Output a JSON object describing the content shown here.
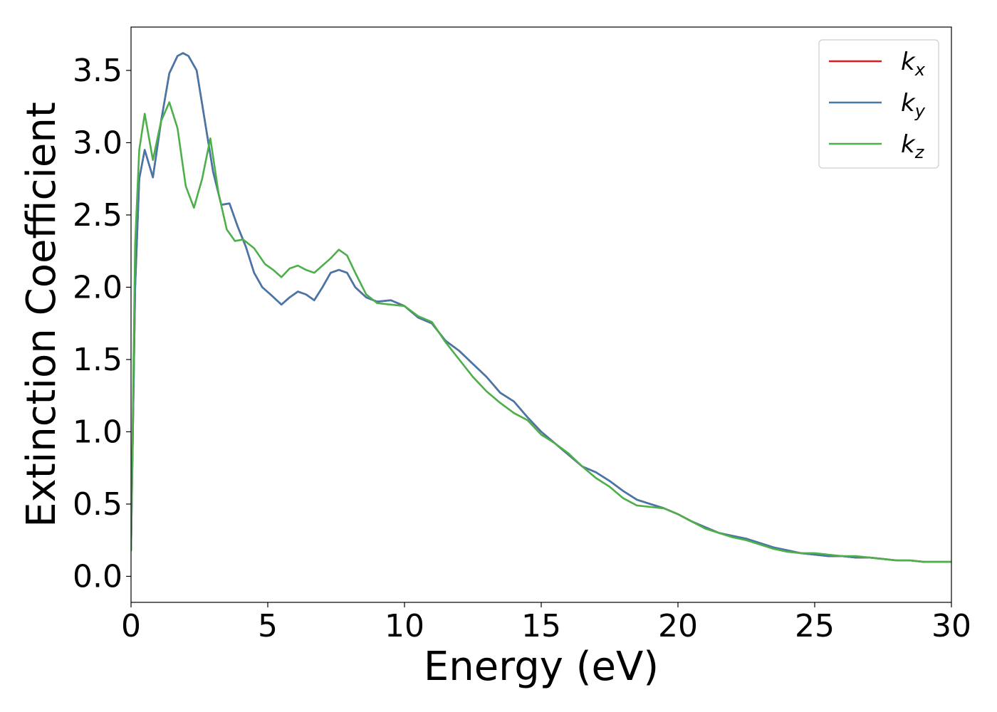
{
  "chart_data": {
    "type": "line",
    "xlabel": "Energy (eV)",
    "ylabel": "Extinction Coefficient",
    "xlim": [
      0,
      30
    ],
    "ylim": [
      -0.18,
      3.8
    ],
    "xticks": [
      0,
      5,
      10,
      15,
      20,
      25,
      30
    ],
    "xtick_labels": [
      "0",
      "5",
      "10",
      "15",
      "20",
      "25",
      "30"
    ],
    "yticks": [
      0.0,
      0.5,
      1.0,
      1.5,
      2.0,
      2.5,
      3.0,
      3.5
    ],
    "ytick_labels": [
      "0.0",
      "0.5",
      "1.0",
      "1.5",
      "2.0",
      "2.5",
      "3.0",
      "3.5"
    ],
    "grid": false,
    "legend_position": "top-right",
    "series": [
      {
        "name": "k",
        "subscript": "x",
        "color": "#e41a1c",
        "x": [
          0,
          0.15,
          0.3,
          0.5,
          0.8,
          1.1,
          1.4,
          1.7,
          1.9,
          2.1,
          2.4,
          2.7,
          3.0,
          3.3,
          3.6,
          3.9,
          4.2,
          4.5,
          4.8,
          5.1,
          5.5,
          5.8,
          6.1,
          6.4,
          6.7,
          7.0,
          7.3,
          7.6,
          7.9,
          8.2,
          8.6,
          9.0,
          9.5,
          10.0,
          10.5,
          11.0,
          11.5,
          12.0,
          12.5,
          13.0,
          13.5,
          14.0,
          14.5,
          15.0,
          15.5,
          16.0,
          16.5,
          17.0,
          17.5,
          18.0,
          18.5,
          19.0,
          19.5,
          20.0,
          20.5,
          21.0,
          21.5,
          22.0,
          22.5,
          23.0,
          23.5,
          24.0,
          24.5,
          25.0,
          25.5,
          26.0,
          26.5,
          27.0,
          27.5,
          28.0,
          28.5,
          29.0,
          29.5,
          30.0
        ],
        "y": [
          0.18,
          2.0,
          2.75,
          2.95,
          2.76,
          3.15,
          3.48,
          3.6,
          3.62,
          3.6,
          3.5,
          3.15,
          2.8,
          2.57,
          2.58,
          2.42,
          2.28,
          2.1,
          2.0,
          1.95,
          1.88,
          1.93,
          1.97,
          1.95,
          1.91,
          2.0,
          2.1,
          2.12,
          2.1,
          2.0,
          1.93,
          1.9,
          1.91,
          1.87,
          1.79,
          1.75,
          1.63,
          1.56,
          1.47,
          1.38,
          1.27,
          1.21,
          1.1,
          1.0,
          0.92,
          0.84,
          0.76,
          0.72,
          0.66,
          0.59,
          0.53,
          0.5,
          0.47,
          0.43,
          0.38,
          0.34,
          0.3,
          0.28,
          0.26,
          0.23,
          0.2,
          0.18,
          0.16,
          0.15,
          0.14,
          0.14,
          0.13,
          0.13,
          0.12,
          0.11,
          0.11,
          0.1,
          0.1,
          0.1
        ]
      },
      {
        "name": "k",
        "subscript": "y",
        "color": "#4477aa",
        "x": [
          0,
          0.15,
          0.3,
          0.5,
          0.8,
          1.1,
          1.4,
          1.7,
          1.9,
          2.1,
          2.4,
          2.7,
          3.0,
          3.3,
          3.6,
          3.9,
          4.2,
          4.5,
          4.8,
          5.1,
          5.5,
          5.8,
          6.1,
          6.4,
          6.7,
          7.0,
          7.3,
          7.6,
          7.9,
          8.2,
          8.6,
          9.0,
          9.5,
          10.0,
          10.5,
          11.0,
          11.5,
          12.0,
          12.5,
          13.0,
          13.5,
          14.0,
          14.5,
          15.0,
          15.5,
          16.0,
          16.5,
          17.0,
          17.5,
          18.0,
          18.5,
          19.0,
          19.5,
          20.0,
          20.5,
          21.0,
          21.5,
          22.0,
          22.5,
          23.0,
          23.5,
          24.0,
          24.5,
          25.0,
          25.5,
          26.0,
          26.5,
          27.0,
          27.5,
          28.0,
          28.5,
          29.0,
          29.5,
          30.0
        ],
        "y": [
          0.18,
          2.0,
          2.75,
          2.95,
          2.76,
          3.15,
          3.48,
          3.6,
          3.62,
          3.6,
          3.5,
          3.15,
          2.8,
          2.57,
          2.58,
          2.42,
          2.28,
          2.1,
          2.0,
          1.95,
          1.88,
          1.93,
          1.97,
          1.95,
          1.91,
          2.0,
          2.1,
          2.12,
          2.1,
          2.0,
          1.93,
          1.9,
          1.91,
          1.87,
          1.79,
          1.75,
          1.63,
          1.56,
          1.47,
          1.38,
          1.27,
          1.21,
          1.1,
          1.0,
          0.92,
          0.84,
          0.76,
          0.72,
          0.66,
          0.59,
          0.53,
          0.5,
          0.47,
          0.43,
          0.38,
          0.34,
          0.3,
          0.28,
          0.26,
          0.23,
          0.2,
          0.18,
          0.16,
          0.15,
          0.14,
          0.14,
          0.13,
          0.13,
          0.12,
          0.11,
          0.11,
          0.1,
          0.1,
          0.1
        ]
      },
      {
        "name": "k",
        "subscript": "z",
        "color": "#4daf4a",
        "x": [
          0,
          0.15,
          0.3,
          0.5,
          0.8,
          1.1,
          1.4,
          1.7,
          2.0,
          2.3,
          2.6,
          2.9,
          3.2,
          3.5,
          3.8,
          4.1,
          4.5,
          4.9,
          5.2,
          5.5,
          5.8,
          6.1,
          6.4,
          6.7,
          7.0,
          7.3,
          7.6,
          7.9,
          8.2,
          8.6,
          9.0,
          9.5,
          10.0,
          10.5,
          11.0,
          11.5,
          12.0,
          12.5,
          13.0,
          13.5,
          14.0,
          14.5,
          15.0,
          15.5,
          16.0,
          16.5,
          17.0,
          17.5,
          18.0,
          18.5,
          19.0,
          19.5,
          20.0,
          20.5,
          21.0,
          21.5,
          22.0,
          22.5,
          23.0,
          23.5,
          24.0,
          24.5,
          25.0,
          25.5,
          26.0,
          26.5,
          27.0,
          27.5,
          28.0,
          28.5,
          29.0,
          29.5,
          30.0
        ],
        "y": [
          0.18,
          2.3,
          2.95,
          3.2,
          2.88,
          3.15,
          3.28,
          3.1,
          2.7,
          2.55,
          2.75,
          3.03,
          2.65,
          2.4,
          2.32,
          2.33,
          2.27,
          2.16,
          2.12,
          2.07,
          2.13,
          2.15,
          2.12,
          2.1,
          2.15,
          2.2,
          2.26,
          2.22,
          2.1,
          1.95,
          1.89,
          1.88,
          1.87,
          1.8,
          1.76,
          1.62,
          1.5,
          1.38,
          1.28,
          1.2,
          1.13,
          1.08,
          0.98,
          0.92,
          0.85,
          0.76,
          0.68,
          0.62,
          0.54,
          0.49,
          0.48,
          0.47,
          0.43,
          0.38,
          0.33,
          0.3,
          0.27,
          0.25,
          0.22,
          0.19,
          0.17,
          0.16,
          0.16,
          0.15,
          0.14,
          0.14,
          0.13,
          0.12,
          0.11,
          0.11,
          0.1,
          0.1,
          0.1
        ]
      }
    ]
  }
}
